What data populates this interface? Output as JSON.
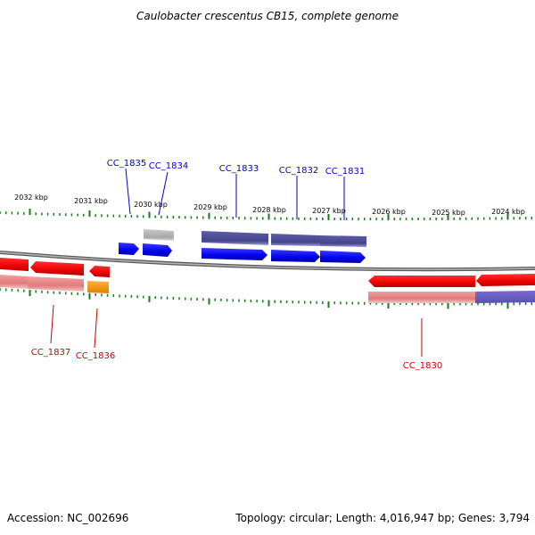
{
  "title": "Caulobacter crescentus CB15, complete genome",
  "footer": {
    "accession": "Accession: NC_002696",
    "topology": "Topology: circular; Length: 4,016,947 bp; Genes: 3,794"
  },
  "scale_labels": [
    "2032 kbp",
    "2031 kbp",
    "2030 kbp",
    "2029 kbp",
    "2028 kbp",
    "2027 kbp",
    "2026 kbp",
    "2025 kbp",
    "2024 kbp"
  ],
  "gene_labels": {
    "forward": [
      "CC_1835",
      "CC_1834",
      "CC_1833",
      "CC_1832",
      "CC_1831"
    ],
    "reverse": [
      "CC_1837",
      "CC_1836",
      "CC_1830"
    ]
  },
  "colors": {
    "forward_cds": "#0000ee",
    "forward_feature": "#4b4b96",
    "reverse_cds": "#ee0000",
    "reverse_feature": "#e07a7a",
    "other_feature": "#aaaaaa",
    "rna": "#ff8c00",
    "backbone": "#808080",
    "ticks": "#1a7a1a",
    "forward_label": "#0000cc",
    "reverse_label": "#cc0000"
  }
}
